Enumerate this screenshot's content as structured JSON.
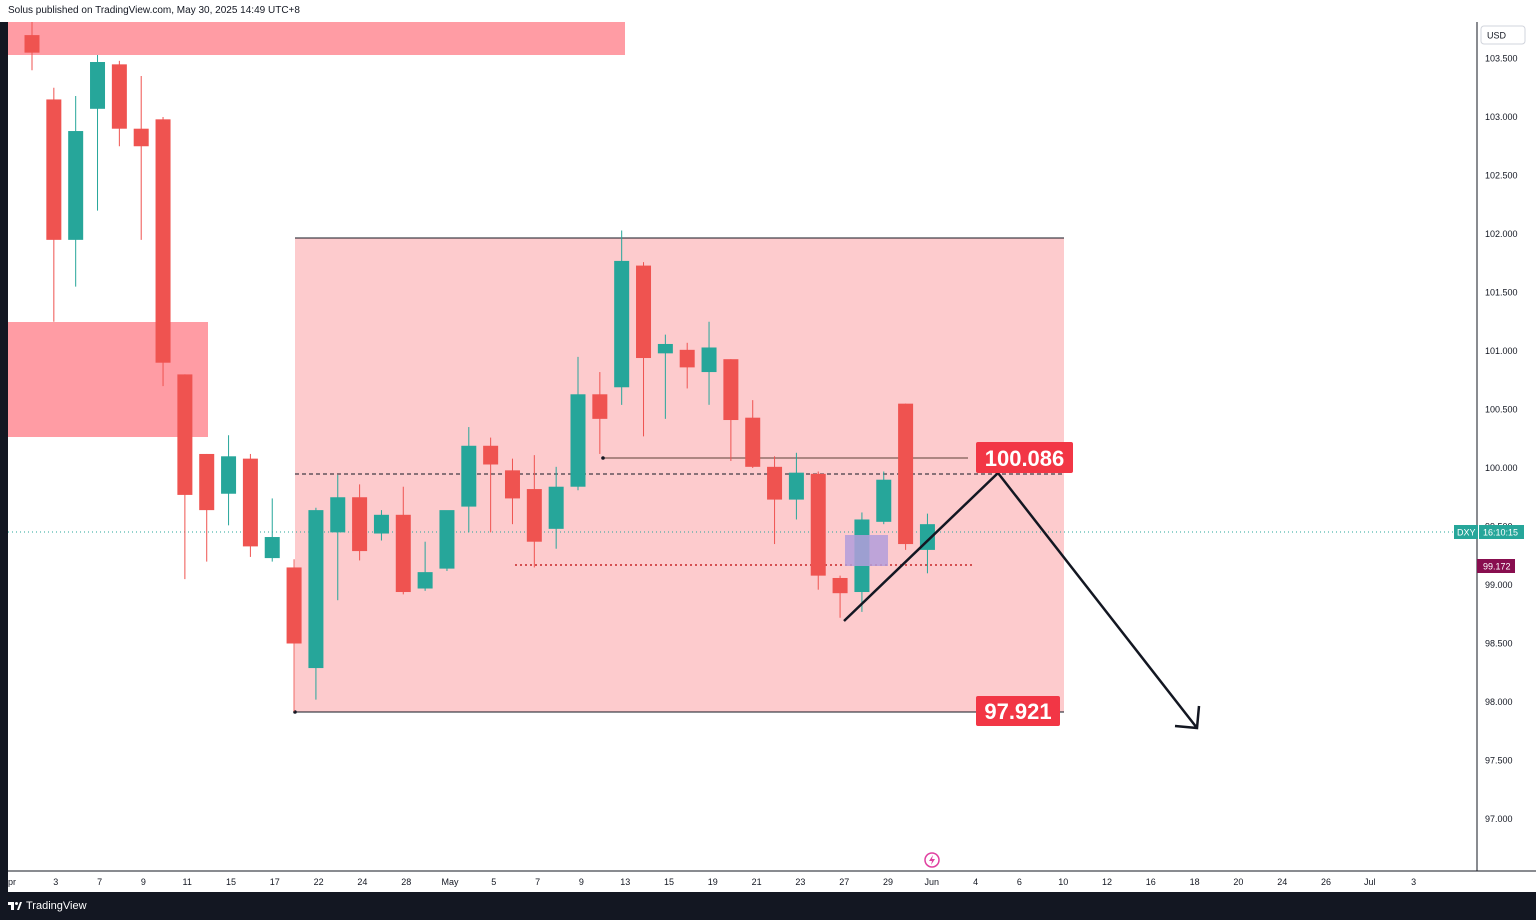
{
  "header": {
    "publisher": "Solus published on TradingView.com, May 30, 2025 14:49 UTC+8"
  },
  "footer": {
    "brand": "TradingView"
  },
  "chart_data": {
    "type": "candlestick",
    "symbol": "DXY",
    "currency": "USD",
    "countdown": "16:10:15",
    "last_price_label": "99.172",
    "ylim": [
      96.6,
      103.85
    ],
    "y_ticks": [
      "97.000",
      "97.500",
      "98.000",
      "98.500",
      "99.000",
      "99.500",
      "100.000",
      "100.500",
      "101.000",
      "101.500",
      "102.000",
      "102.500",
      "103.000",
      "103.500"
    ],
    "x_ticks": [
      "pr",
      "3",
      "7",
      "9",
      "11",
      "15",
      "17",
      "22",
      "24",
      "28",
      "May",
      "5",
      "7",
      "9",
      "13",
      "15",
      "19",
      "21",
      "23",
      "27",
      "29",
      "Jun",
      "4",
      "6",
      "10",
      "12",
      "16",
      "18",
      "20",
      "24",
      "26",
      "Jul",
      "3"
    ],
    "candles": [
      {
        "o": 103.7,
        "h": 103.85,
        "l": 103.4,
        "c": 103.55
      },
      {
        "o": 103.15,
        "h": 103.25,
        "l": 101.25,
        "c": 101.95
      },
      {
        "o": 101.95,
        "h": 103.18,
        "l": 101.55,
        "c": 102.88
      },
      {
        "o": 103.07,
        "h": 103.53,
        "l": 102.2,
        "c": 103.47
      },
      {
        "o": 103.45,
        "h": 103.48,
        "l": 102.75,
        "c": 102.9
      },
      {
        "o": 102.9,
        "h": 103.35,
        "l": 101.95,
        "c": 102.75
      },
      {
        "o": 102.98,
        "h": 103.0,
        "l": 100.7,
        "c": 100.9
      },
      {
        "o": 100.8,
        "h": 100.8,
        "l": 99.05,
        "c": 99.77
      },
      {
        "o": 100.12,
        "h": 100.12,
        "l": 99.2,
        "c": 99.64
      },
      {
        "o": 99.78,
        "h": 100.28,
        "l": 99.51,
        "c": 100.1
      },
      {
        "o": 100.08,
        "h": 100.12,
        "l": 99.24,
        "c": 99.33
      },
      {
        "o": 99.23,
        "h": 99.74,
        "l": 99.2,
        "c": 99.41
      },
      {
        "o": 99.15,
        "h": 99.22,
        "l": 97.92,
        "c": 98.5
      },
      {
        "o": 98.29,
        "h": 99.66,
        "l": 98.02,
        "c": 99.64
      },
      {
        "o": 99.45,
        "h": 99.94,
        "l": 98.87,
        "c": 99.75
      },
      {
        "o": 99.75,
        "h": 99.86,
        "l": 99.21,
        "c": 99.29
      },
      {
        "o": 99.44,
        "h": 99.64,
        "l": 99.38,
        "c": 99.6
      },
      {
        "o": 99.6,
        "h": 99.84,
        "l": 98.92,
        "c": 98.94
      },
      {
        "o": 98.97,
        "h": 99.37,
        "l": 98.95,
        "c": 99.11
      },
      {
        "o": 99.14,
        "h": 99.63,
        "l": 99.12,
        "c": 99.64
      },
      {
        "o": 99.67,
        "h": 100.35,
        "l": 99.45,
        "c": 100.19
      },
      {
        "o": 100.19,
        "h": 100.26,
        "l": 99.45,
        "c": 100.03
      },
      {
        "o": 99.98,
        "h": 100.08,
        "l": 99.52,
        "c": 99.74
      },
      {
        "o": 99.82,
        "h": 100.11,
        "l": 99.15,
        "c": 99.37
      },
      {
        "o": 99.48,
        "h": 100.01,
        "l": 99.31,
        "c": 99.84
      },
      {
        "o": 99.84,
        "h": 100.95,
        "l": 99.81,
        "c": 100.63
      },
      {
        "o": 100.63,
        "h": 100.82,
        "l": 100.12,
        "c": 100.42
      },
      {
        "o": 100.69,
        "h": 102.03,
        "l": 100.54,
        "c": 101.77
      },
      {
        "o": 101.73,
        "h": 101.76,
        "l": 100.27,
        "c": 100.94
      },
      {
        "o": 100.98,
        "h": 101.14,
        "l": 100.42,
        "c": 101.06
      },
      {
        "o": 101.01,
        "h": 101.07,
        "l": 100.68,
        "c": 100.86
      },
      {
        "o": 100.82,
        "h": 101.25,
        "l": 100.54,
        "c": 101.03
      },
      {
        "o": 100.93,
        "h": 100.93,
        "l": 100.06,
        "c": 100.41
      },
      {
        "o": 100.43,
        "h": 100.58,
        "l": 100.0,
        "c": 100.01
      },
      {
        "o": 100.01,
        "h": 100.1,
        "l": 99.35,
        "c": 99.73
      },
      {
        "o": 99.73,
        "h": 100.13,
        "l": 99.56,
        "c": 99.96
      },
      {
        "o": 99.95,
        "h": 99.97,
        "l": 98.96,
        "c": 99.08
      },
      {
        "o": 99.06,
        "h": 99.08,
        "l": 98.72,
        "c": 98.93
      },
      {
        "o": 98.94,
        "h": 99.62,
        "l": 98.77,
        "c": 99.56
      },
      {
        "o": 99.54,
        "h": 99.97,
        "l": 99.52,
        "c": 99.9
      },
      {
        "o": 100.55,
        "h": 100.55,
        "l": 99.3,
        "c": 99.35
      },
      {
        "o": 99.3,
        "h": 99.61,
        "l": 99.1,
        "c": 99.52
      }
    ],
    "annotations": {
      "range_top": "100.086",
      "range_bottom": "97.921"
    }
  }
}
